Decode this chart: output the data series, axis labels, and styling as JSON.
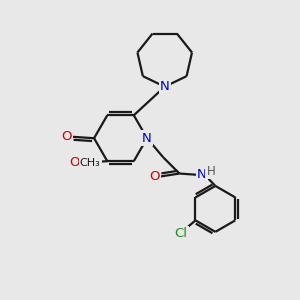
{
  "bg_color": "#e8e8e8",
  "bond_color": "#1a1a1a",
  "N_color": "#0000cc",
  "O_color": "#cc0000",
  "Cl_color": "#228B22",
  "H_color": "#555555",
  "line_width": 1.6,
  "font_size": 9.5,
  "fig_width": 3.0,
  "fig_height": 3.0,
  "dpi": 100,
  "xlim": [
    0,
    10
  ],
  "ylim": [
    0,
    10
  ]
}
